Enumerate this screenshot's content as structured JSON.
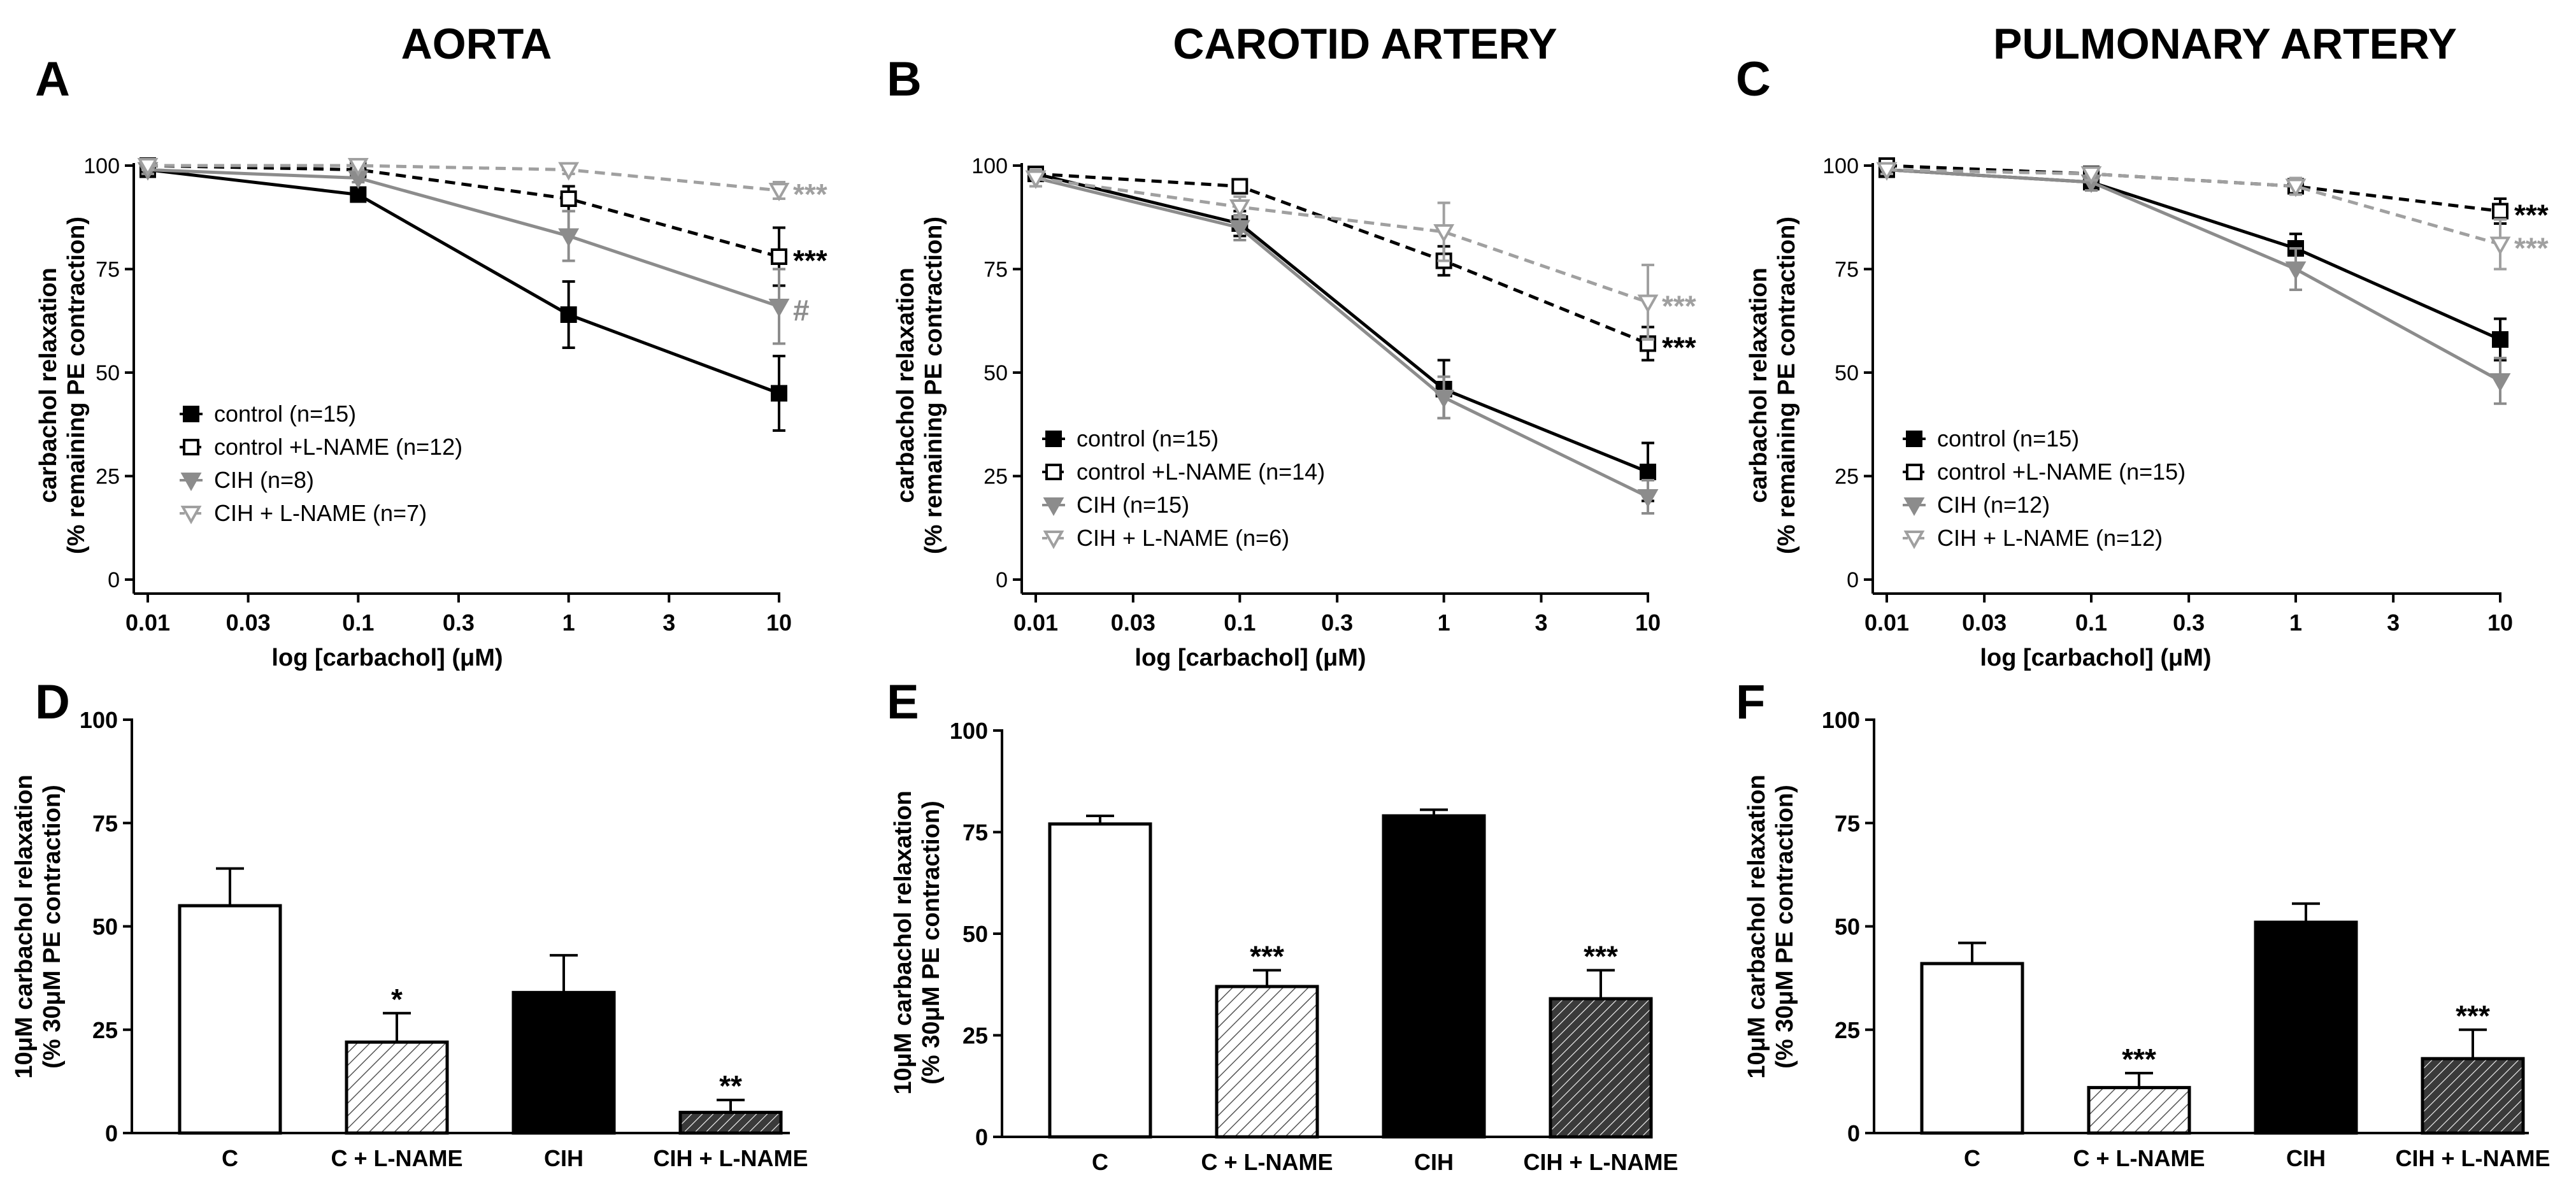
{
  "chart_data": [
    {
      "id": "A",
      "type": "line",
      "panel_label": "A",
      "title": "AORTA",
      "xlabel": "log [carbachol] (μM)",
      "ylabel_line1": "carbachol relaxation",
      "ylabel_line2": "(% remaining PE contraction)",
      "xscale": "log",
      "xlim": [
        0.01,
        10
      ],
      "x_ticks": [
        0.01,
        0.03,
        0.1,
        0.3,
        1,
        3,
        10
      ],
      "x_tick_labels": [
        "0.01",
        "0.03",
        "0.1",
        "0.3",
        "1",
        "3",
        "10"
      ],
      "ylim": [
        0,
        100
      ],
      "y_ticks": [
        0,
        25,
        50,
        75,
        100
      ],
      "y_tick_labels": [
        "0",
        "25",
        "50",
        "75",
        "100"
      ],
      "x": [
        0.01,
        0.1,
        1,
        10
      ],
      "legend_position": "lower-left",
      "series": [
        {
          "name": "control (n=15)",
          "color": "#000000",
          "dashed": false,
          "marker": "filled-square",
          "values": [
            99,
            93,
            64,
            45
          ],
          "errors": [
            1,
            1.5,
            8,
            9
          ],
          "annotation": ""
        },
        {
          "name": "control +L-NAME (n=12)",
          "color": "#000000",
          "dashed": true,
          "marker": "open-square",
          "values": [
            100,
            99,
            92,
            78
          ],
          "errors": [
            1,
            1,
            3,
            7
          ],
          "annotation": "***"
        },
        {
          "name": "CIH (n=8)",
          "color": "#8c8c8c",
          "dashed": false,
          "marker": "filled-triangle",
          "values": [
            99,
            97,
            83,
            66
          ],
          "errors": [
            1,
            1,
            6,
            9
          ],
          "annotation": "#"
        },
        {
          "name": "CIH + L-NAME (n=7)",
          "color": "#a0a0a0",
          "dashed": true,
          "marker": "open-triangle",
          "values": [
            100,
            100,
            99,
            94
          ],
          "errors": [
            1,
            1,
            1,
            2
          ],
          "annotation": "***"
        }
      ]
    },
    {
      "id": "B",
      "type": "line",
      "panel_label": "B",
      "title": "CAROTID ARTERY",
      "xlabel": "log [carbachol] (μM)",
      "ylabel_line1": "carbachol relaxation",
      "ylabel_line2": "(% remaining PE contraction)",
      "xscale": "log",
      "xlim": [
        0.01,
        10
      ],
      "x_ticks": [
        0.01,
        0.03,
        0.1,
        0.3,
        1,
        3,
        10
      ],
      "x_tick_labels": [
        "0.01",
        "0.03",
        "0.1",
        "0.3",
        "1",
        "3",
        "10"
      ],
      "ylim": [
        0,
        100
      ],
      "y_ticks": [
        0,
        25,
        50,
        75,
        100
      ],
      "y_tick_labels": [
        "0",
        "25",
        "50",
        "75",
        "100"
      ],
      "x": [
        0.01,
        0.1,
        1,
        10
      ],
      "legend_position": "lower-left",
      "series": [
        {
          "name": "control (n=15)",
          "color": "#000000",
          "dashed": false,
          "marker": "filled-square",
          "values": [
            98,
            86,
            46,
            26
          ],
          "errors": [
            1.5,
            3,
            7,
            7
          ],
          "annotation": ""
        },
        {
          "name": "control +L-NAME (n=14)",
          "color": "#000000",
          "dashed": true,
          "marker": "open-square",
          "values": [
            98,
            95,
            77,
            57
          ],
          "errors": [
            1.5,
            1.5,
            3.5,
            4
          ],
          "annotation": "***"
        },
        {
          "name": "CIH (n=15)",
          "color": "#8c8c8c",
          "dashed": false,
          "marker": "filled-triangle",
          "values": [
            97,
            85,
            44,
            20
          ],
          "errors": [
            2,
            3,
            5,
            4
          ],
          "annotation": ""
        },
        {
          "name": "CIH + L-NAME (n=6)",
          "color": "#a0a0a0",
          "dashed": true,
          "marker": "open-triangle",
          "values": [
            97,
            90,
            84,
            67
          ],
          "errors": [
            2,
            2.5,
            7,
            9
          ],
          "annotation": "***"
        }
      ]
    },
    {
      "id": "C",
      "type": "line",
      "panel_label": "C",
      "title": "PULMONARY ARTERY",
      "xlabel": "log [carbachol] (μM)",
      "ylabel_line1": "carbachol relaxation",
      "ylabel_line2": "(% remaining PE contraction)",
      "xscale": "log",
      "xlim": [
        0.01,
        10
      ],
      "x_ticks": [
        0.01,
        0.03,
        0.1,
        0.3,
        1,
        3,
        10
      ],
      "x_tick_labels": [
        "0.01",
        "0.03",
        "0.1",
        "0.3",
        "1",
        "3",
        "10"
      ],
      "ylim": [
        0,
        100
      ],
      "y_ticks": [
        0,
        25,
        50,
        75,
        100
      ],
      "y_tick_labels": [
        "0",
        "25",
        "50",
        "75",
        "100"
      ],
      "x": [
        0.01,
        0.1,
        1,
        10
      ],
      "legend_position": "lower-left",
      "series": [
        {
          "name": "control (n=15)",
          "color": "#000000",
          "dashed": false,
          "marker": "filled-square",
          "values": [
            99,
            96,
            80,
            58
          ],
          "errors": [
            1,
            2,
            3.5,
            5
          ],
          "annotation": ""
        },
        {
          "name": "control +L-NAME (n=15)",
          "color": "#000000",
          "dashed": true,
          "marker": "open-square",
          "values": [
            100,
            98,
            95,
            89
          ],
          "errors": [
            1,
            1.5,
            2,
            3
          ],
          "annotation": "***"
        },
        {
          "name": "CIH (n=12)",
          "color": "#8c8c8c",
          "dashed": false,
          "marker": "filled-triangle",
          "values": [
            99,
            96,
            75,
            48
          ],
          "errors": [
            1,
            2,
            5,
            5.5
          ],
          "annotation": ""
        },
        {
          "name": "CIH + L-NAME (n=12)",
          "color": "#a0a0a0",
          "dashed": true,
          "marker": "open-triangle",
          "values": [
            99,
            98,
            95,
            81
          ],
          "errors": [
            1,
            1.5,
            2,
            6
          ],
          "annotation": "***"
        }
      ]
    },
    {
      "id": "D",
      "type": "bar",
      "panel_label": "D",
      "ylabel_line1": "10μM carbachol relaxation",
      "ylabel_line2": "(% 30μM PE contraction)",
      "categories": [
        "C",
        "C + L-NAME",
        "CIH",
        "CIH + L-NAME"
      ],
      "values": [
        55,
        22,
        34,
        5
      ],
      "errors": [
        9,
        7,
        9,
        3
      ],
      "annotations": [
        "",
        "*",
        "",
        "**"
      ],
      "fills": [
        "white",
        "hatch-light",
        "black",
        "hatch-dark"
      ],
      "ylim": [
        0,
        100
      ],
      "y_ticks": [
        0,
        25,
        50,
        75,
        100
      ],
      "y_tick_labels": [
        "0",
        "25",
        "50",
        "75",
        "100"
      ]
    },
    {
      "id": "E",
      "type": "bar",
      "panel_label": "E",
      "ylabel_line1": "10μM carbachol relaxation",
      "ylabel_line2": "(% 30μM PE contraction)",
      "categories": [
        "C",
        "C + L-NAME",
        "CIH",
        "CIH + L-NAME"
      ],
      "values": [
        77,
        37,
        79,
        34
      ],
      "errors": [
        2,
        4,
        1.5,
        7
      ],
      "annotations": [
        "",
        "***",
        "",
        "***"
      ],
      "fills": [
        "white",
        "hatch-light",
        "black",
        "hatch-dark"
      ],
      "ylim": [
        0,
        100
      ],
      "y_ticks": [
        0,
        25,
        50,
        75,
        100
      ],
      "y_tick_labels": [
        "0",
        "25",
        "50",
        "75",
        "100"
      ]
    },
    {
      "id": "F",
      "type": "bar",
      "panel_label": "F",
      "ylabel_line1": "10μM carbachol relaxation",
      "ylabel_line2": "(% 30μM PE contraction)",
      "categories": [
        "C",
        "C + L-NAME",
        "CIH",
        "CIH + L-NAME"
      ],
      "values": [
        41,
        11,
        51,
        18
      ],
      "errors": [
        5,
        3.5,
        4.5,
        7
      ],
      "annotations": [
        "",
        "***",
        "",
        "***"
      ],
      "fills": [
        "white",
        "hatch-light",
        "black",
        "hatch-dark"
      ],
      "ylim": [
        0,
        100
      ],
      "y_ticks": [
        0,
        25,
        50,
        75,
        100
      ],
      "y_tick_labels": [
        "0",
        "25",
        "50",
        "75",
        "100"
      ]
    }
  ]
}
